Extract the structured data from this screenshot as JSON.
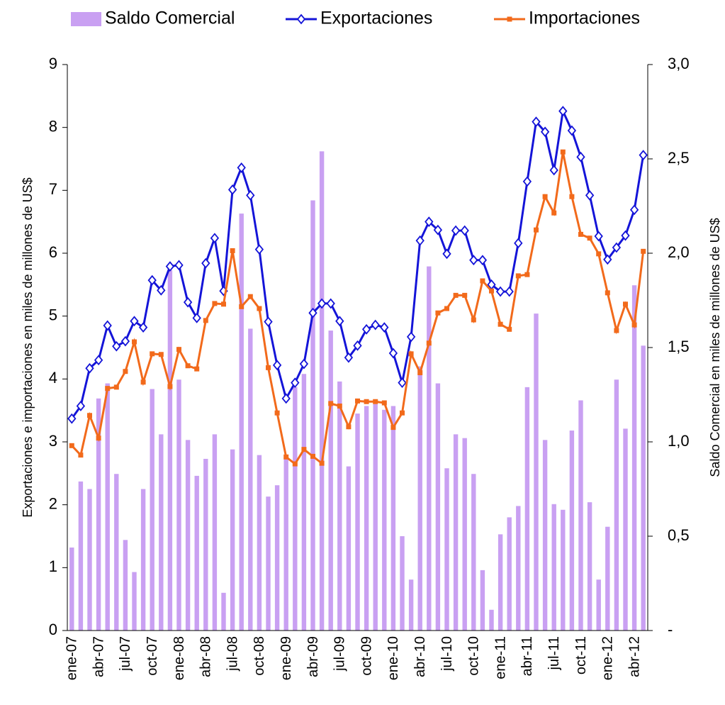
{
  "chart_data": {
    "type": "bar-line",
    "y_label": "Exportaciones e importaciones en miles de millones de US$",
    "y2_label": "Saldo Comercial en miles de millones de US$",
    "categories": [
      "ene-07",
      null,
      null,
      "abr-07",
      null,
      null,
      "jul-07",
      null,
      null,
      "oct-07",
      null,
      null,
      "ene-08",
      null,
      null,
      "abr-08",
      null,
      null,
      "jul-08",
      null,
      null,
      "oct-08",
      null,
      null,
      "ene-09",
      null,
      null,
      "abr-09",
      null,
      null,
      "jul-09",
      null,
      null,
      "oct-09",
      null,
      null,
      "ene-10",
      null,
      null,
      "abr-10",
      null,
      null,
      "jul-10",
      null,
      null,
      "oct-10",
      null,
      null,
      "ene-11",
      null,
      null,
      "abr-11",
      null,
      null,
      "jul-11",
      null,
      null,
      "oct-11",
      null,
      null,
      "ene-12",
      null,
      null,
      "abr-12",
      null
    ],
    "series": [
      {
        "name": "Saldo Comercial",
        "type": "bar",
        "axis": "y2",
        "color": "#c9a0f2",
        "values": [
          0.44,
          0.79,
          0.75,
          1.23,
          1.31,
          0.83,
          0.48,
          0.31,
          0.75,
          1.28,
          1.04,
          1.91,
          1.33,
          1.01,
          0.82,
          0.91,
          1.04,
          0.2,
          0.96,
          2.21,
          1.6,
          0.93,
          0.71,
          0.77,
          0.93,
          1.29,
          1.36,
          2.28,
          2.54,
          1.59,
          1.32,
          0.87,
          1.15,
          1.19,
          1.2,
          1.17,
          1.19,
          0.5,
          0.27,
          1.4,
          1.93,
          1.31,
          0.86,
          1.04,
          1.02,
          0.83,
          0.32,
          0.11,
          0.51,
          0.6,
          0.66,
          1.29,
          1.68,
          1.01,
          0.67,
          0.64,
          1.06,
          1.22,
          0.68,
          0.27,
          0.55,
          1.33,
          1.07,
          1.83,
          1.51
        ]
      },
      {
        "name": "Exportaciones",
        "type": "line",
        "marker": "diamond",
        "color": "#1414d8",
        "values": [
          3.37,
          3.57,
          4.17,
          4.3,
          4.85,
          4.52,
          4.6,
          4.92,
          4.82,
          5.57,
          5.41,
          5.79,
          5.81,
          5.22,
          4.97,
          5.84,
          6.24,
          5.4,
          7.01,
          7.36,
          6.92,
          6.06,
          4.91,
          4.22,
          3.69,
          3.94,
          4.24,
          5.05,
          5.2,
          5.2,
          4.92,
          4.34,
          4.53,
          4.79,
          4.86,
          4.82,
          4.41,
          3.94,
          4.67,
          6.2,
          6.5,
          6.37,
          5.99,
          6.36,
          6.36,
          5.89,
          5.89,
          5.5,
          5.39,
          5.39,
          6.16,
          7.14,
          8.09,
          7.93,
          7.32,
          8.26,
          7.95,
          7.53,
          6.92,
          6.27,
          5.9,
          6.09,
          6.28,
          6.69,
          7.56
        ]
      },
      {
        "name": "Importaciones",
        "type": "line",
        "marker": "square",
        "color": "#f26a1b",
        "values": [
          2.94,
          2.79,
          3.42,
          3.06,
          3.85,
          3.87,
          4.12,
          4.59,
          3.95,
          4.4,
          4.39,
          3.88,
          4.47,
          4.21,
          4.16,
          4.93,
          5.2,
          5.19,
          6.04,
          5.15,
          5.31,
          5.12,
          4.18,
          3.46,
          2.76,
          2.65,
          2.88,
          2.77,
          2.66,
          3.61,
          3.57,
          3.24,
          3.65,
          3.64,
          3.64,
          3.62,
          3.23,
          3.46,
          4.4,
          4.1,
          4.57,
          5.05,
          5.12,
          5.33,
          5.33,
          4.94,
          5.56,
          5.4,
          4.87,
          4.79,
          5.64,
          5.66,
          6.37,
          6.9,
          6.64,
          7.61,
          6.9,
          6.3,
          6.24,
          5.99,
          5.37,
          4.77,
          5.19,
          4.86,
          6.03
        ]
      }
    ],
    "ylim": [
      0,
      9
    ],
    "yticks": [
      0,
      1,
      2,
      3,
      4,
      5,
      6,
      7,
      8,
      9
    ],
    "y2lim": [
      0,
      3
    ],
    "y2ticks": [
      {
        "value": 0,
        "label": "-"
      },
      {
        "value": 0.5,
        "label": "0,5"
      },
      {
        "value": 1,
        "label": "1,0"
      },
      {
        "value": 1.5,
        "label": "1,5"
      },
      {
        "value": 2,
        "label": "2,0"
      },
      {
        "value": 2.5,
        "label": "2,5"
      },
      {
        "value": 3,
        "label": "3,0"
      }
    ],
    "legend": "top"
  }
}
